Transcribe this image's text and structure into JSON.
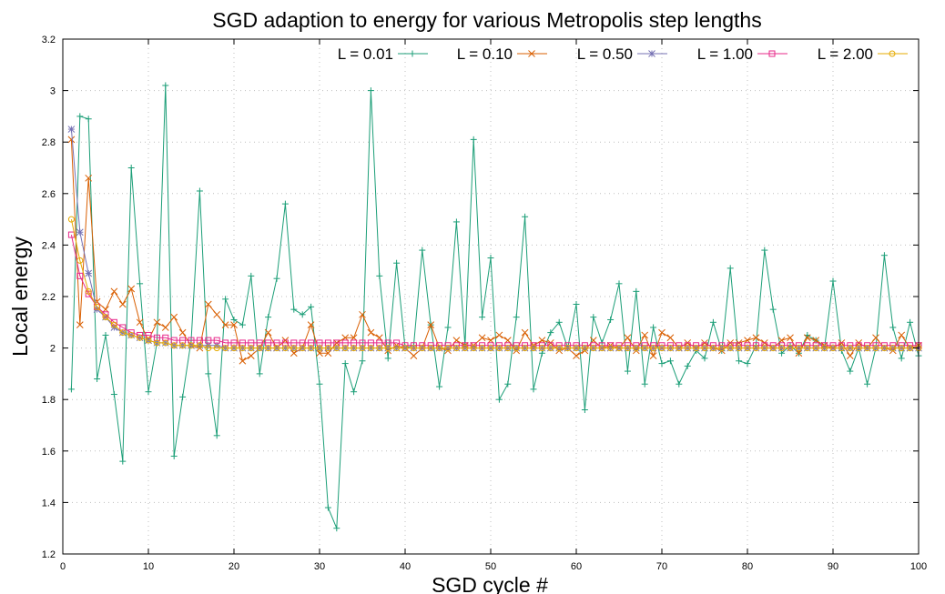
{
  "chart_data": {
    "type": "line",
    "title": "SGD adaption to energy for various Metropolis step lengths",
    "xlabel": "SGD cycle #",
    "ylabel": "Local energy",
    "xlim": [
      0,
      100
    ],
    "ylim": [
      1.2,
      3.2
    ],
    "xticks": [
      0,
      10,
      20,
      30,
      40,
      50,
      60,
      70,
      80,
      90,
      100
    ],
    "yticks": [
      1.2,
      1.4,
      1.6,
      1.8,
      2,
      2.2,
      2.4,
      2.6,
      2.8,
      3,
      3.2
    ],
    "grid": true,
    "legend_position": "top-right",
    "x": [
      1,
      2,
      3,
      4,
      5,
      6,
      7,
      8,
      9,
      10,
      11,
      12,
      13,
      14,
      15,
      16,
      17,
      18,
      19,
      20,
      21,
      22,
      23,
      24,
      25,
      26,
      27,
      28,
      29,
      30,
      31,
      32,
      33,
      34,
      35,
      36,
      37,
      38,
      39,
      40,
      41,
      42,
      43,
      44,
      45,
      46,
      47,
      48,
      49,
      50,
      51,
      52,
      53,
      54,
      55,
      56,
      57,
      58,
      59,
      60,
      61,
      62,
      63,
      64,
      65,
      66,
      67,
      68,
      69,
      70,
      71,
      72,
      73,
      74,
      75,
      76,
      77,
      78,
      79,
      80,
      81,
      82,
      83,
      84,
      85,
      86,
      87,
      88,
      89,
      90,
      91,
      92,
      93,
      94,
      95,
      96,
      97,
      98,
      99,
      100
    ],
    "series": [
      {
        "name": "L = 0.01",
        "color": "#1b9e77",
        "marker": "plus",
        "values": [
          1.84,
          2.9,
          2.89,
          1.88,
          2.05,
          1.82,
          1.56,
          2.7,
          2.25,
          1.83,
          2.02,
          3.02,
          1.58,
          1.81,
          2.03,
          2.61,
          1.9,
          1.66,
          2.19,
          2.11,
          2.09,
          2.28,
          1.9,
          2.12,
          2.27,
          2.56,
          2.15,
          2.13,
          2.16,
          1.86,
          1.38,
          1.3,
          1.94,
          1.83,
          1.95,
          3.0,
          2.28,
          1.96,
          2.33,
          2.0,
          2.01,
          2.38,
          2.09,
          1.85,
          2.08,
          2.49,
          2.01,
          2.81,
          2.12,
          2.35,
          1.8,
          1.86,
          2.12,
          2.51,
          1.84,
          1.98,
          2.06,
          2.1,
          2.0,
          2.17,
          1.76,
          2.12,
          2.02,
          2.11,
          2.25,
          1.91,
          2.22,
          1.86,
          2.08,
          1.94,
          1.95,
          1.86,
          1.93,
          1.99,
          1.96,
          2.1,
          1.99,
          2.31,
          1.95,
          1.94,
          2.01,
          2.38,
          2.15,
          1.98,
          2.01,
          1.98,
          2.05,
          2.03,
          2.0,
          2.26,
          1.99,
          1.91,
          2.0,
          1.86,
          2.0,
          2.36,
          2.08,
          1.96,
          2.1,
          1.97
        ]
      },
      {
        "name": "L = 0.10",
        "color": "#d95f02",
        "marker": "cross",
        "values": [
          2.81,
          2.09,
          2.66,
          2.18,
          2.15,
          2.22,
          2.17,
          2.23,
          2.1,
          2.03,
          2.1,
          2.08,
          2.12,
          2.06,
          2.01,
          2.0,
          2.17,
          2.13,
          2.09,
          2.09,
          1.95,
          1.97,
          2.0,
          2.06,
          2.0,
          2.03,
          1.98,
          2.0,
          2.09,
          1.98,
          1.98,
          2.02,
          2.04,
          2.04,
          2.13,
          2.06,
          2.04,
          1.99,
          2.01,
          2.0,
          1.97,
          2.0,
          2.09,
          2.0,
          1.99,
          2.03,
          2.01,
          2.01,
          2.04,
          2.03,
          2.05,
          2.03,
          1.99,
          2.06,
          2.01,
          2.03,
          2.02,
          1.99,
          2.0,
          1.97,
          1.99,
          2.03,
          2.0,
          2.01,
          2.0,
          2.04,
          1.99,
          2.05,
          1.97,
          2.06,
          2.04,
          2.0,
          2.02,
          2.0,
          2.02,
          2.0,
          1.99,
          2.02,
          2.02,
          2.03,
          2.04,
          2.02,
          2.0,
          2.03,
          2.04,
          1.98,
          2.04,
          2.03,
          2.01,
          2.0,
          2.02,
          1.97,
          2.02,
          2.0,
          2.04,
          2.0,
          1.99,
          2.05,
          2.0,
          2.01
        ]
      },
      {
        "name": "L = 0.50",
        "color": "#7570b3",
        "marker": "star",
        "values": [
          2.85,
          2.45,
          2.29,
          2.15,
          2.12,
          2.08,
          2.06,
          2.05,
          2.04,
          2.03,
          2.02,
          2.02,
          2.01,
          2.01,
          2.01,
          2.01,
          2.01,
          2.01,
          2.0,
          2.0,
          2.0,
          2.0,
          2.0,
          2.0,
          2.0,
          2.0,
          2.0,
          2.0,
          2.0,
          2.0,
          2.0,
          2.0,
          2.0,
          2.0,
          2.0,
          2.0,
          2.0,
          2.0,
          2.0,
          2.0,
          2.0,
          2.0,
          2.0,
          2.0,
          2.0,
          2.0,
          2.0,
          2.0,
          2.0,
          2.0,
          2.0,
          2.0,
          2.0,
          2.0,
          2.0,
          2.0,
          2.0,
          2.0,
          2.0,
          2.0,
          2.0,
          2.0,
          2.0,
          2.0,
          2.0,
          2.0,
          2.0,
          2.0,
          2.0,
          2.0,
          2.0,
          2.0,
          2.0,
          2.0,
          2.0,
          2.0,
          2.0,
          2.0,
          2.0,
          2.0,
          2.0,
          2.0,
          2.0,
          2.0,
          2.0,
          2.0,
          2.0,
          2.0,
          2.0,
          2.0,
          2.0,
          2.0,
          2.0,
          2.0,
          2.0,
          2.0,
          2.0,
          2.0,
          2.0,
          2.0
        ]
      },
      {
        "name": "L = 1.00",
        "color": "#e7298a",
        "marker": "square",
        "values": [
          2.44,
          2.28,
          2.21,
          2.16,
          2.13,
          2.1,
          2.08,
          2.06,
          2.05,
          2.05,
          2.04,
          2.04,
          2.03,
          2.03,
          2.03,
          2.03,
          2.03,
          2.03,
          2.02,
          2.02,
          2.02,
          2.02,
          2.02,
          2.02,
          2.02,
          2.02,
          2.02,
          2.02,
          2.02,
          2.02,
          2.02,
          2.02,
          2.02,
          2.02,
          2.02,
          2.02,
          2.02,
          2.02,
          2.02,
          2.01,
          2.01,
          2.01,
          2.01,
          2.01,
          2.01,
          2.01,
          2.01,
          2.01,
          2.01,
          2.01,
          2.01,
          2.01,
          2.01,
          2.01,
          2.01,
          2.01,
          2.01,
          2.01,
          2.01,
          2.01,
          2.01,
          2.01,
          2.01,
          2.01,
          2.01,
          2.01,
          2.01,
          2.01,
          2.01,
          2.01,
          2.01,
          2.01,
          2.01,
          2.01,
          2.01,
          2.01,
          2.01,
          2.01,
          2.01,
          2.01,
          2.01,
          2.01,
          2.01,
          2.01,
          2.01,
          2.01,
          2.01,
          2.01,
          2.01,
          2.01,
          2.01,
          2.01,
          2.01,
          2.01,
          2.01,
          2.01,
          2.01,
          2.01,
          2.01,
          2.01
        ]
      },
      {
        "name": "L = 2.00",
        "color": "#e6ab02",
        "marker": "circle",
        "values": [
          2.5,
          2.34,
          2.22,
          2.16,
          2.12,
          2.09,
          2.06,
          2.05,
          2.04,
          2.03,
          2.02,
          2.02,
          2.01,
          2.01,
          2.01,
          2.01,
          2.0,
          2.0,
          2.0,
          2.0,
          2.0,
          2.0,
          2.0,
          2.0,
          2.0,
          2.0,
          2.0,
          2.0,
          2.0,
          2.0,
          2.0,
          2.0,
          2.0,
          2.0,
          2.0,
          2.0,
          2.0,
          2.0,
          2.0,
          2.0,
          2.0,
          2.0,
          2.0,
          2.0,
          2.0,
          2.0,
          2.0,
          2.0,
          2.0,
          2.0,
          2.0,
          2.0,
          2.0,
          2.0,
          2.0,
          2.0,
          2.0,
          2.0,
          2.0,
          2.0,
          2.0,
          2.0,
          2.0,
          2.0,
          2.0,
          2.0,
          2.0,
          2.0,
          2.0,
          2.0,
          2.0,
          2.0,
          2.0,
          2.0,
          2.0,
          2.0,
          2.0,
          2.0,
          2.0,
          2.0,
          2.0,
          2.0,
          2.0,
          2.0,
          2.0,
          2.0,
          2.0,
          2.0,
          2.0,
          2.0,
          2.0,
          2.0,
          2.0,
          2.0,
          2.0,
          2.0,
          2.0,
          2.0,
          2.0,
          2.0
        ]
      }
    ]
  }
}
